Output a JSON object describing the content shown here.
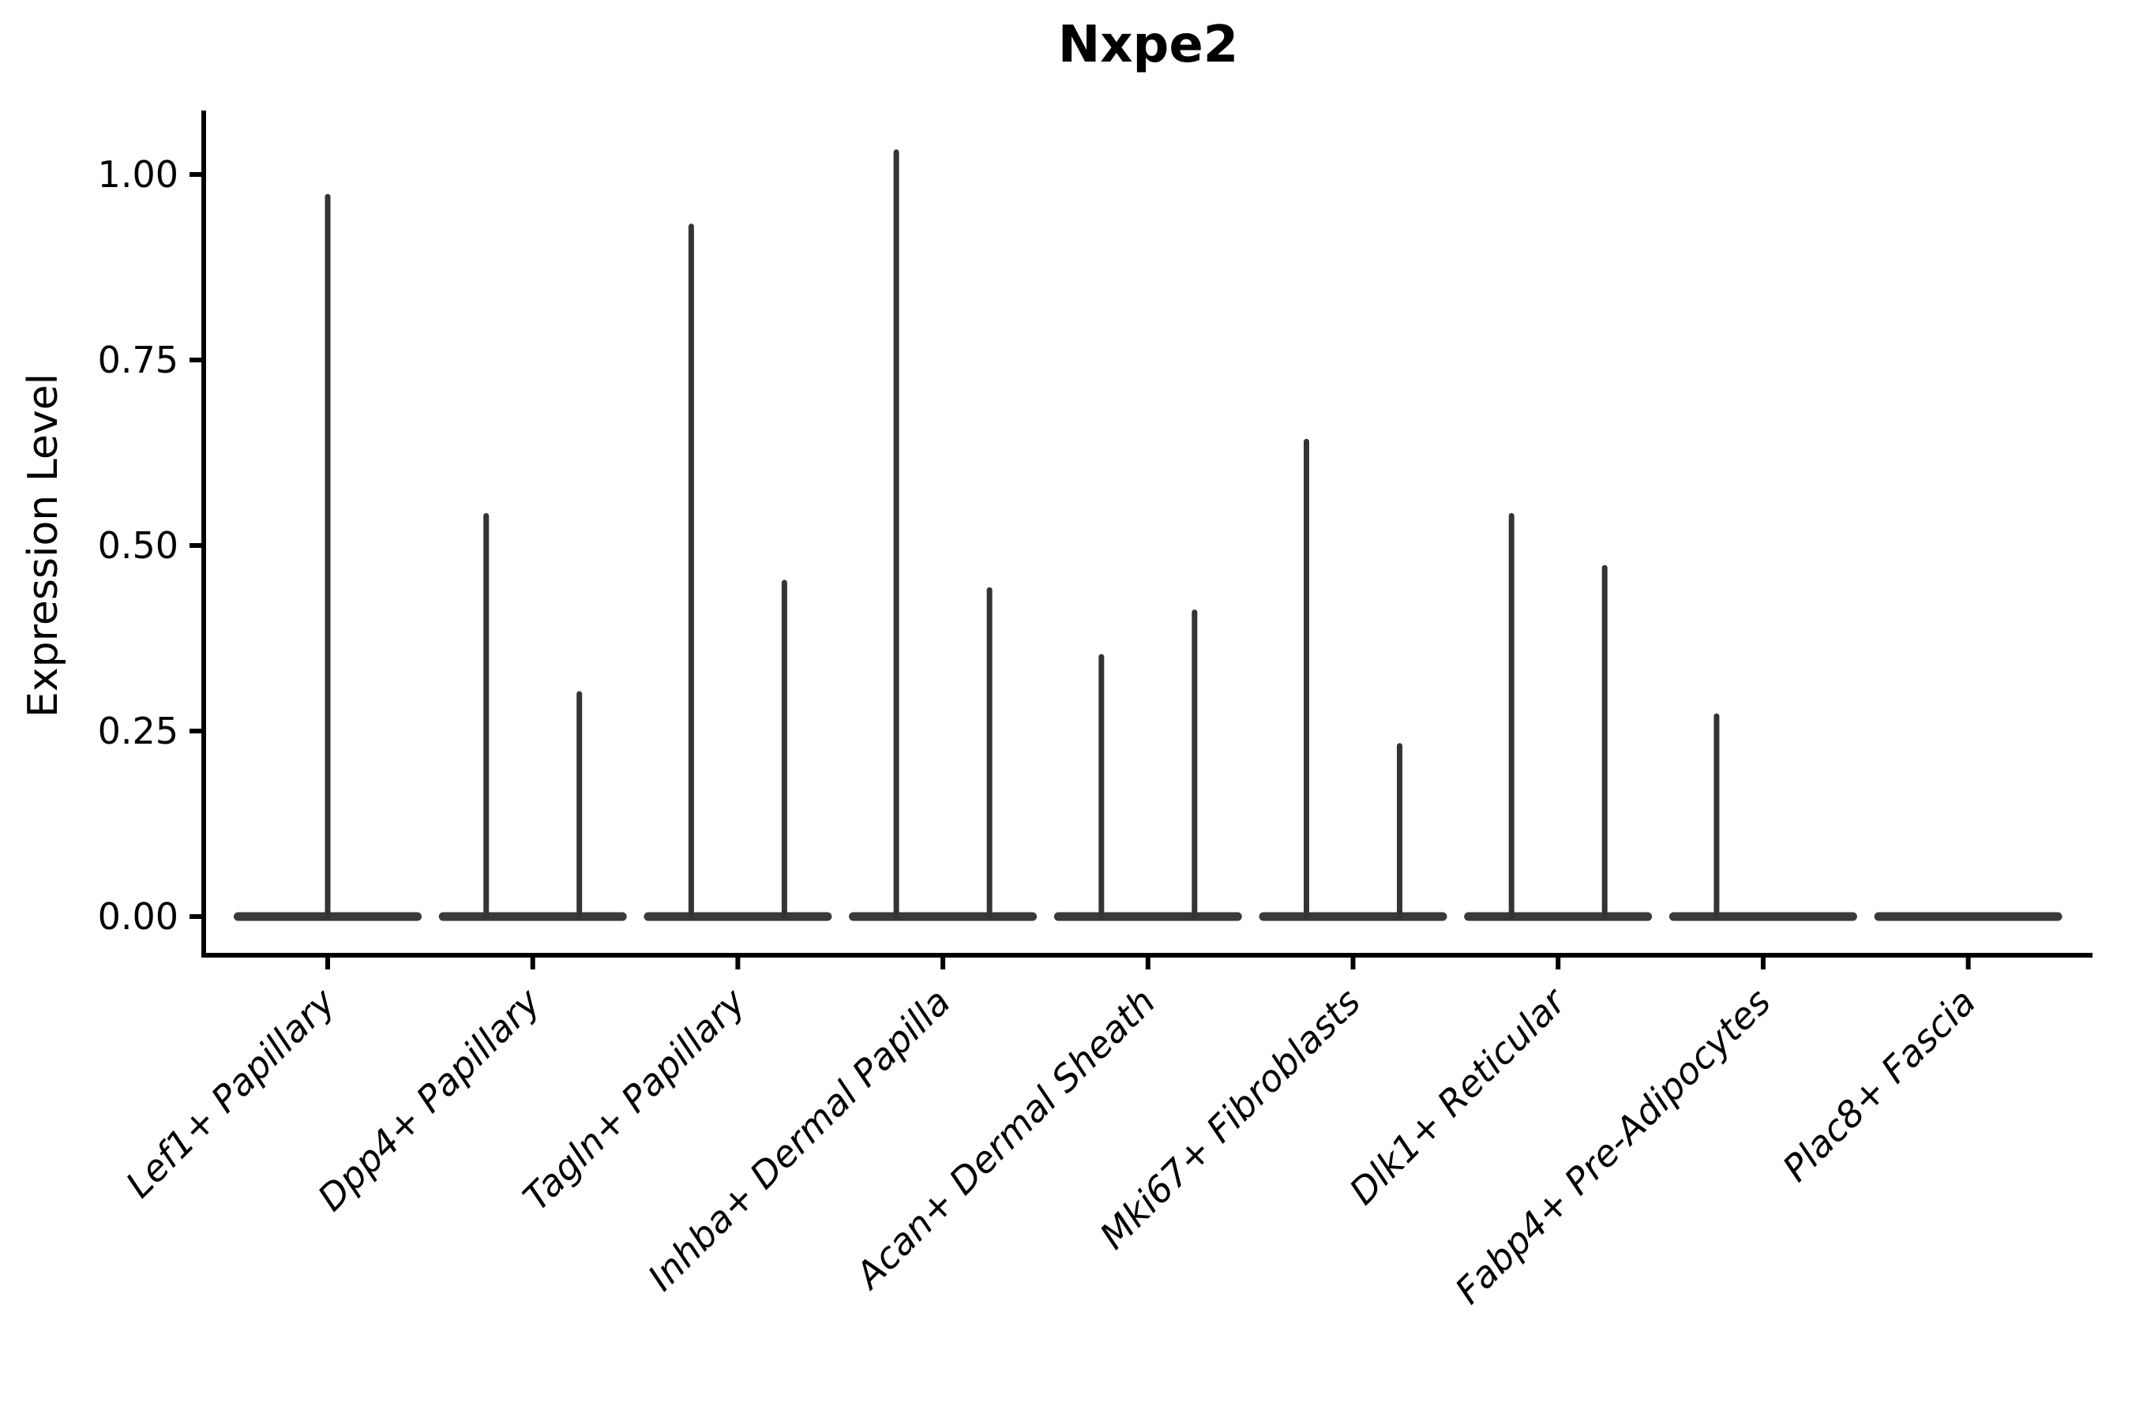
{
  "page": {
    "background_color": "#ffffff"
  },
  "chart_data": {
    "type": "violin",
    "title": "Nxpe2",
    "ylabel": "Expression Level",
    "xlabel": "",
    "grid": false,
    "legend_position": "none",
    "y_axis": {
      "tick_labels": [
        "0.00",
        "0.25",
        "0.50",
        "0.75",
        "1.00"
      ],
      "tick_values": [
        0.0,
        0.25,
        0.5,
        0.75,
        1.0
      ],
      "range": [
        -0.05,
        1.09
      ]
    },
    "categories": [
      "Lef1+ Papillary",
      "Dpp4+ Papillary",
      "Tagln+ Papillary",
      "Inhba+ Dermal Papilla",
      "Acan+ Dermal Sheath",
      "Mki67+ Fibroblasts",
      "Dlk1+ Reticular",
      "Fabp4+ Pre-Adipocytes",
      "Plac8+ Fascia"
    ],
    "violins": [
      {
        "category": "Lef1+ Papillary",
        "body_at_zero": true,
        "spikes": [
          {
            "position": "center",
            "max": 0.97
          }
        ]
      },
      {
        "category": "Dpp4+ Papillary",
        "body_at_zero": true,
        "spikes": [
          {
            "position": "left",
            "max": 0.54
          },
          {
            "position": "right",
            "max": 0.3
          }
        ]
      },
      {
        "category": "Tagln+ Papillary",
        "body_at_zero": true,
        "spikes": [
          {
            "position": "left",
            "max": 0.93
          },
          {
            "position": "right",
            "max": 0.45
          }
        ]
      },
      {
        "category": "Inhba+ Dermal Papilla",
        "body_at_zero": true,
        "spikes": [
          {
            "position": "left",
            "max": 1.03
          },
          {
            "position": "right",
            "max": 0.44
          }
        ]
      },
      {
        "category": "Acan+ Dermal Sheath",
        "body_at_zero": true,
        "spikes": [
          {
            "position": "left",
            "max": 0.35
          },
          {
            "position": "right",
            "max": 0.41
          }
        ]
      },
      {
        "category": "Mki67+ Fibroblasts",
        "body_at_zero": true,
        "spikes": [
          {
            "position": "left",
            "max": 0.64
          },
          {
            "position": "right",
            "max": 0.23
          }
        ]
      },
      {
        "category": "Dlk1+ Reticular",
        "body_at_zero": true,
        "spikes": [
          {
            "position": "left",
            "max": 0.54
          },
          {
            "position": "right",
            "max": 0.47
          }
        ]
      },
      {
        "category": "Fabp4+ Pre-Adipocytes",
        "body_at_zero": true,
        "spikes": [
          {
            "position": "left",
            "max": 0.27
          }
        ]
      },
      {
        "category": "Plac8+ Fascia",
        "body_at_zero": true,
        "spikes": []
      }
    ],
    "colors": {
      "violin_body": "#3a3a3a",
      "violin_spike": "#343434",
      "axis": "#000000",
      "text": "#000000",
      "background": "#ffffff"
    }
  }
}
